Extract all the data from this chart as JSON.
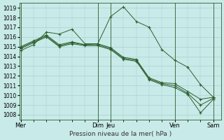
{
  "background_color": "#c8eae8",
  "grid_color": "#9ecfcc",
  "line_color": "#2d5e2d",
  "marker": "+",
  "title": "Pression niveau de la mer( hPa )",
  "ylim": [
    1007.5,
    1019.5
  ],
  "yticks": [
    1008,
    1009,
    1010,
    1011,
    1012,
    1013,
    1014,
    1015,
    1016,
    1017,
    1018,
    1019
  ],
  "vline_positions": [
    0.0,
    3.0,
    3.5,
    6.0,
    7.5
  ],
  "xtick_positions": [
    0.0,
    3.0,
    3.5,
    6.0,
    7.5
  ],
  "xtick_labels": [
    "Mer",
    "Dim",
    "Jeu",
    "Ven",
    "Sam"
  ],
  "xlim": [
    -0.05,
    7.8
  ],
  "series": [
    {
      "x": [
        0.0,
        0.5,
        1.0,
        1.5,
        2.0,
        2.5,
        3.0,
        3.5,
        4.0,
        4.5,
        5.0,
        5.5,
        6.0,
        6.5,
        7.0,
        7.5
      ],
      "y": [
        1014.6,
        1015.2,
        1016.5,
        1016.3,
        1016.8,
        1015.3,
        1015.3,
        1018.1,
        1019.1,
        1017.6,
        1017.0,
        1014.7,
        1013.6,
        1012.9,
        1011.1,
        1009.8
      ]
    },
    {
      "x": [
        0.0,
        0.5,
        1.0,
        1.5,
        2.0,
        2.5,
        3.0,
        3.5,
        4.0,
        4.5,
        5.0,
        5.5,
        6.0,
        6.5,
        7.0,
        7.5
      ],
      "y": [
        1015.0,
        1015.6,
        1016.2,
        1015.2,
        1015.5,
        1015.2,
        1015.3,
        1014.9,
        1013.9,
        1013.7,
        1011.8,
        1011.3,
        1011.2,
        1010.4,
        1009.6,
        1009.8
      ]
    },
    {
      "x": [
        0.0,
        0.5,
        1.0,
        1.5,
        2.0,
        2.5,
        3.0,
        3.5,
        4.0,
        4.5,
        5.0,
        5.5,
        6.0,
        6.5,
        7.0,
        7.5
      ],
      "y": [
        1014.8,
        1015.4,
        1016.0,
        1015.0,
        1015.3,
        1015.1,
        1015.1,
        1014.7,
        1013.7,
        1013.5,
        1011.6,
        1011.1,
        1010.8,
        1010.1,
        1008.2,
        1009.6
      ]
    },
    {
      "x": [
        0.0,
        0.5,
        1.0,
        1.5,
        2.0,
        2.5,
        3.0,
        3.5,
        4.0,
        4.5,
        5.0,
        5.5,
        6.0,
        6.5,
        7.0,
        7.5
      ],
      "y": [
        1014.9,
        1015.5,
        1016.1,
        1015.1,
        1015.4,
        1015.2,
        1015.2,
        1014.8,
        1013.8,
        1013.6,
        1011.7,
        1011.2,
        1011.0,
        1010.2,
        1009.0,
        1009.7
      ]
    }
  ]
}
